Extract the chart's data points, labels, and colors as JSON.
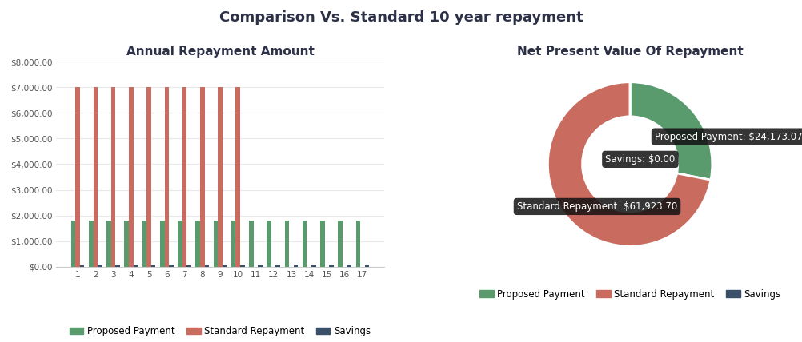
{
  "title": "Comparison Vs. Standard 10 year repayment",
  "title_fontsize": 13,
  "title_color": "#2d3148",
  "bar_chart_title": "Annual Repayment Amount",
  "donut_chart_title": "Net Present Value Of Repayment",
  "categories": [
    1,
    2,
    3,
    4,
    5,
    6,
    7,
    8,
    9,
    10,
    11,
    12,
    13,
    14,
    15,
    16,
    17
  ],
  "proposed_payment": [
    1800,
    1800,
    1800,
    1800,
    1800,
    1800,
    1800,
    1800,
    1800,
    1800,
    1800,
    1800,
    1800,
    1800,
    1800,
    1800,
    1800
  ],
  "standard_repayment": [
    7000,
    7000,
    7000,
    7000,
    7000,
    7000,
    7000,
    7000,
    7000,
    7000,
    0,
    0,
    0,
    0,
    0,
    0,
    0
  ],
  "savings": [
    50,
    50,
    50,
    50,
    50,
    50,
    50,
    50,
    50,
    50,
    50,
    50,
    50,
    50,
    50,
    50,
    50
  ],
  "ylim": [
    0,
    8000
  ],
  "yticks": [
    0,
    1000,
    2000,
    3000,
    4000,
    5000,
    6000,
    7000,
    8000
  ],
  "color_proposed": "#5a9b6e",
  "color_standard": "#c96b5e",
  "color_savings": "#3a5068",
  "donut_values": [
    24173.07,
    61923.7,
    0.001
  ],
  "donut_labels": [
    "Proposed Payment",
    "Standard Repayment",
    "Savings"
  ],
  "donut_colors": [
    "#5a9b6e",
    "#c96b5e",
    "#3a5068"
  ],
  "tooltip_proposed": "Proposed Payment: $24,173.07",
  "tooltip_standard": "Standard Repayment: $61,923.70",
  "tooltip_savings": "Savings: $0.00",
  "bg_color": "#ffffff"
}
